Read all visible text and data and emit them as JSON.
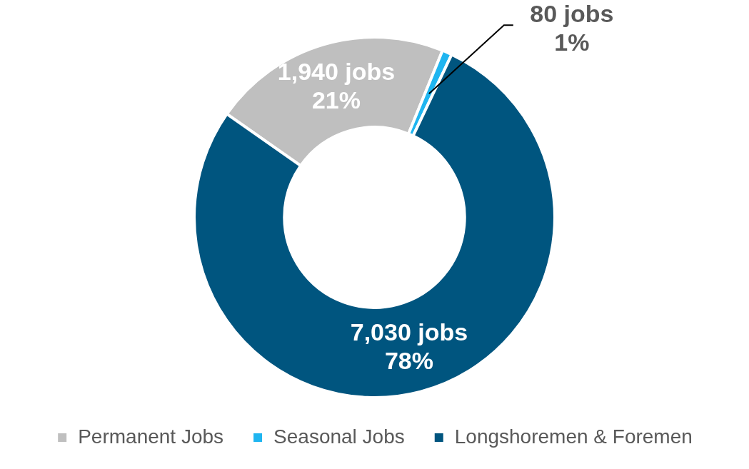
{
  "chart_data": {
    "type": "donut",
    "categories": [
      "Permanent Jobs",
      "Seasonal Jobs",
      "Longshoremen & Foremen"
    ],
    "values": [
      1940,
      80,
      7030
    ],
    "colors": [
      "#bfbfbf",
      "#1fb5f0",
      "#00557f"
    ],
    "value_labels": [
      "1,940 jobs\n21%",
      "80 jobs\n1%",
      "7,030 jobs\n78%"
    ],
    "legend": "bottom"
  }
}
